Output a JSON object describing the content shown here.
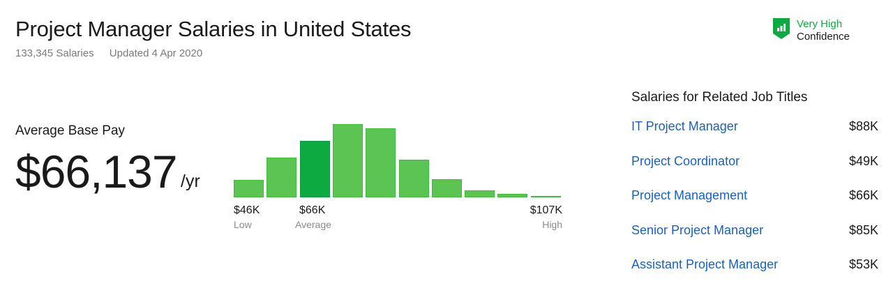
{
  "title": "Project Manager Salaries in United States",
  "salaries_count": "133,345 Salaries",
  "updated": "Updated 4 Apr 2020",
  "confidence": {
    "level": "Very High",
    "label": "Confidence"
  },
  "average": {
    "label": "Average Base Pay",
    "value": "$66,137",
    "unit": "/yr"
  },
  "chart_data": {
    "type": "bar",
    "values_relative": [
      24,
      54,
      77,
      100,
      94,
      51,
      25,
      10,
      5,
      1
    ],
    "highlight_index": 2,
    "low": {
      "value": "$46K",
      "label": "Low"
    },
    "avg": {
      "value": "$66K",
      "label": "Average"
    },
    "high": {
      "value": "$107K",
      "label": "High"
    }
  },
  "related": {
    "title": "Salaries for Related Job Titles",
    "items": [
      {
        "title": "IT Project Manager",
        "pay": "$88K"
      },
      {
        "title": "Project Coordinator",
        "pay": "$49K"
      },
      {
        "title": "Project Management",
        "pay": "$66K"
      },
      {
        "title": "Senior Project Manager",
        "pay": "$85K"
      },
      {
        "title": "Assistant Project Manager",
        "pay": "$53K"
      }
    ]
  },
  "colors": {
    "green": "#0caa41",
    "bar": "#5bc452",
    "link": "#1861bf"
  }
}
